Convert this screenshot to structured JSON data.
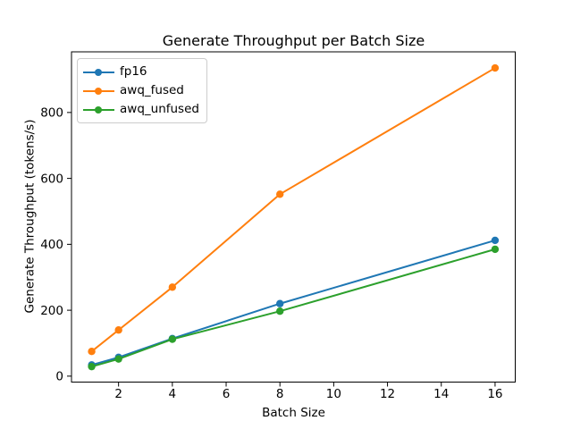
{
  "chart_data": {
    "type": "line",
    "title": "Generate Throughput per Batch Size",
    "xlabel": "Batch Size",
    "ylabel": "Generate Throughput (tokens/s)",
    "x": [
      1,
      2,
      4,
      8,
      16
    ],
    "series": [
      {
        "name": "fp16",
        "color": "#1f77b4",
        "values": [
          34,
          57,
          114,
          220,
          412
        ]
      },
      {
        "name": "awq_fused",
        "color": "#ff7f0e",
        "values": [
          75,
          140,
          270,
          552,
          935
        ]
      },
      {
        "name": "awq_unfused",
        "color": "#2ca02c",
        "values": [
          29,
          52,
          112,
          197,
          385
        ]
      }
    ],
    "xticks": [
      2,
      4,
      6,
      8,
      10,
      12,
      14,
      16
    ],
    "yticks": [
      0,
      200,
      400,
      600,
      800
    ],
    "xlim": [
      0.25,
      16.75
    ],
    "ylim": [
      -18,
      984
    ],
    "grid": false,
    "legend_position": "upper left",
    "marker": "o",
    "line_width": 2,
    "marker_radius": 4.2,
    "axis_color": "#000000",
    "background": "#ffffff"
  }
}
